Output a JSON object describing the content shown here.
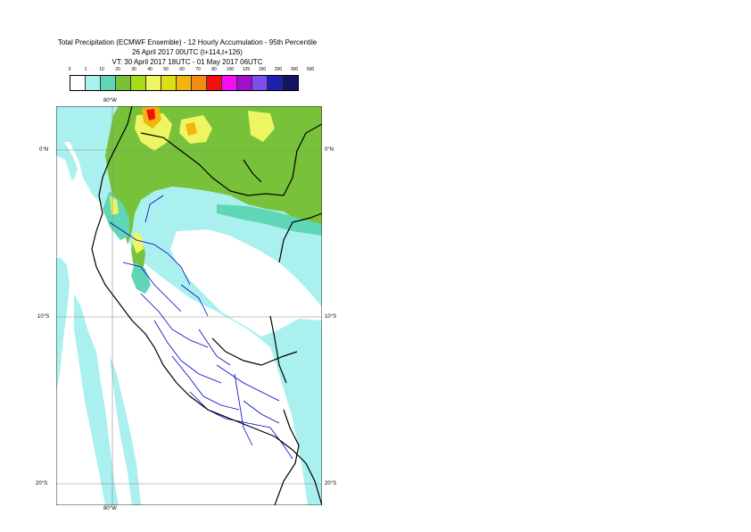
{
  "title": {
    "line1": "Total Precipitation (ECMWF Ensemble) - 12 Hourly Accumulation - 95th Percentile",
    "line2": "26 April 2017 00UTC (t+114,t+126)",
    "line3": "VT: 30 April 2017 18UTC - 01 May 2017 06UTC"
  },
  "legend": {
    "ticks": [
      "0",
      "1",
      "10",
      "20",
      "30",
      "40",
      "50",
      "60",
      "70",
      "80",
      "100",
      "125",
      "150",
      "200",
      "300",
      "500"
    ],
    "colors": [
      "#ffffff",
      "#aaf0ee",
      "#5fd6b6",
      "#77c23a",
      "#a8dc18",
      "#eef562",
      "#dede15",
      "#f3b410",
      "#f28d13",
      "#f20f0f",
      "#f20ff2",
      "#a010c8",
      "#7d4ef0",
      "#2020b0",
      "#141466"
    ]
  },
  "map": {
    "lon_labels": [
      "80°W",
      "80°W"
    ],
    "lat_labels": {
      "left": [
        "0°N",
        "10°S",
        "20°S"
      ],
      "right": [
        "0°N",
        "10°S",
        "20°S"
      ]
    },
    "colors": {
      "ocean_light": "#aaf0ee",
      "land_green": "#77c23a",
      "teal": "#5fd6b6",
      "yellow": "#eef562",
      "orange": "#f3b410",
      "red": "#f20f0f",
      "country_border": "#000000",
      "region_border": "#0000cc",
      "grid": "#888888"
    }
  }
}
